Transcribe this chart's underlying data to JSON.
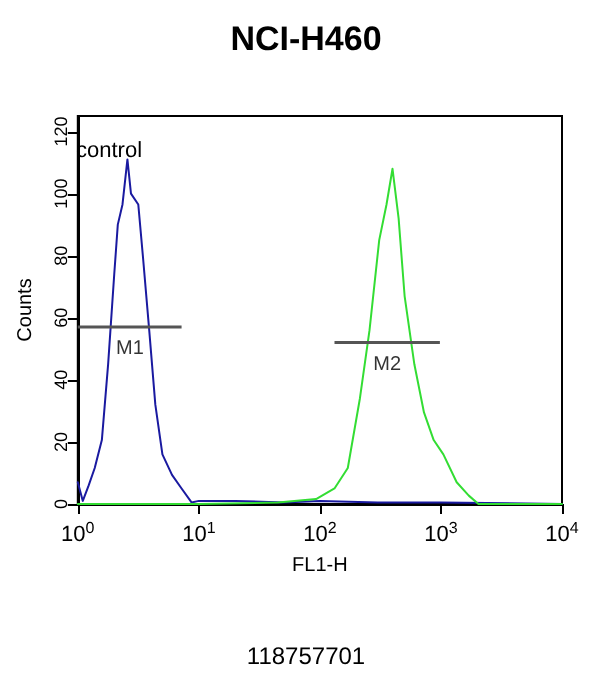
{
  "chart_data": {
    "type": "line",
    "title": "NCI-H460",
    "xlabel": "FL1-H",
    "ylabel": "Counts",
    "log": "x",
    "marker": "none",
    "grid": false,
    "xlim": [
      1,
      10000
    ],
    "xticks": [
      {
        "value": 1,
        "label": "10$^{0}$"
      },
      {
        "value": 10,
        "label": "10$^{1}$"
      },
      {
        "value": 100,
        "label": "10$^{2}$"
      },
      {
        "value": 1000,
        "label": "10$^{3}$"
      },
      {
        "value": 10000,
        "label": "10$^{4}$"
      }
    ],
    "ylim": [
      0,
      125
    ],
    "yticks": [
      0,
      20,
      40,
      60,
      80,
      100,
      120
    ],
    "series": [
      {
        "color": "#1a1aa0",
        "x": [
          1,
          1.1,
          1.23,
          1.38,
          1.58,
          1.78,
          2.0,
          2.14,
          2.34,
          2.57,
          2.75,
          3.16,
          3.47,
          3.89,
          4.37,
          5.0,
          6.0,
          7.2,
          8.7,
          10,
          20,
          50,
          100,
          300,
          1000,
          10000
        ],
        "values": [
          7,
          1,
          6,
          11.6,
          20.6,
          45,
          74,
          90,
          96.5,
          111,
          100,
          96.5,
          78.7,
          56,
          32,
          16,
          9.4,
          5,
          0.5,
          1,
          1,
          0.5,
          1,
          0.5,
          0.5,
          0
        ]
      },
      {
        "color": "#33dd33",
        "x": [
          1,
          10,
          45,
          93,
          132,
          170,
          214,
          257,
          309,
          355,
          398,
          447,
          501,
          603,
          724,
          871,
          1047,
          1349,
          1698,
          2042,
          10000
        ],
        "values": [
          0,
          0,
          0.5,
          1.6,
          5,
          11.6,
          34,
          56,
          85,
          96.5,
          108,
          92,
          67,
          45,
          29.5,
          20.6,
          16,
          7,
          2.7,
          0,
          0
        ]
      },
      {
        "color": "#555555",
        "x": [
          1,
          7.2
        ],
        "values": [
          57,
          57
        ]
      },
      {
        "color": "#555555",
        "x": [
          132,
          980
        ],
        "values": [
          52,
          52
        ]
      }
    ],
    "annotations": [
      "control",
      {
        "text": "M1",
        "x": 2.7,
        "y": 57
      },
      {
        "text": "M2",
        "x": 360,
        "y": 52
      },
      "118757701"
    ]
  }
}
